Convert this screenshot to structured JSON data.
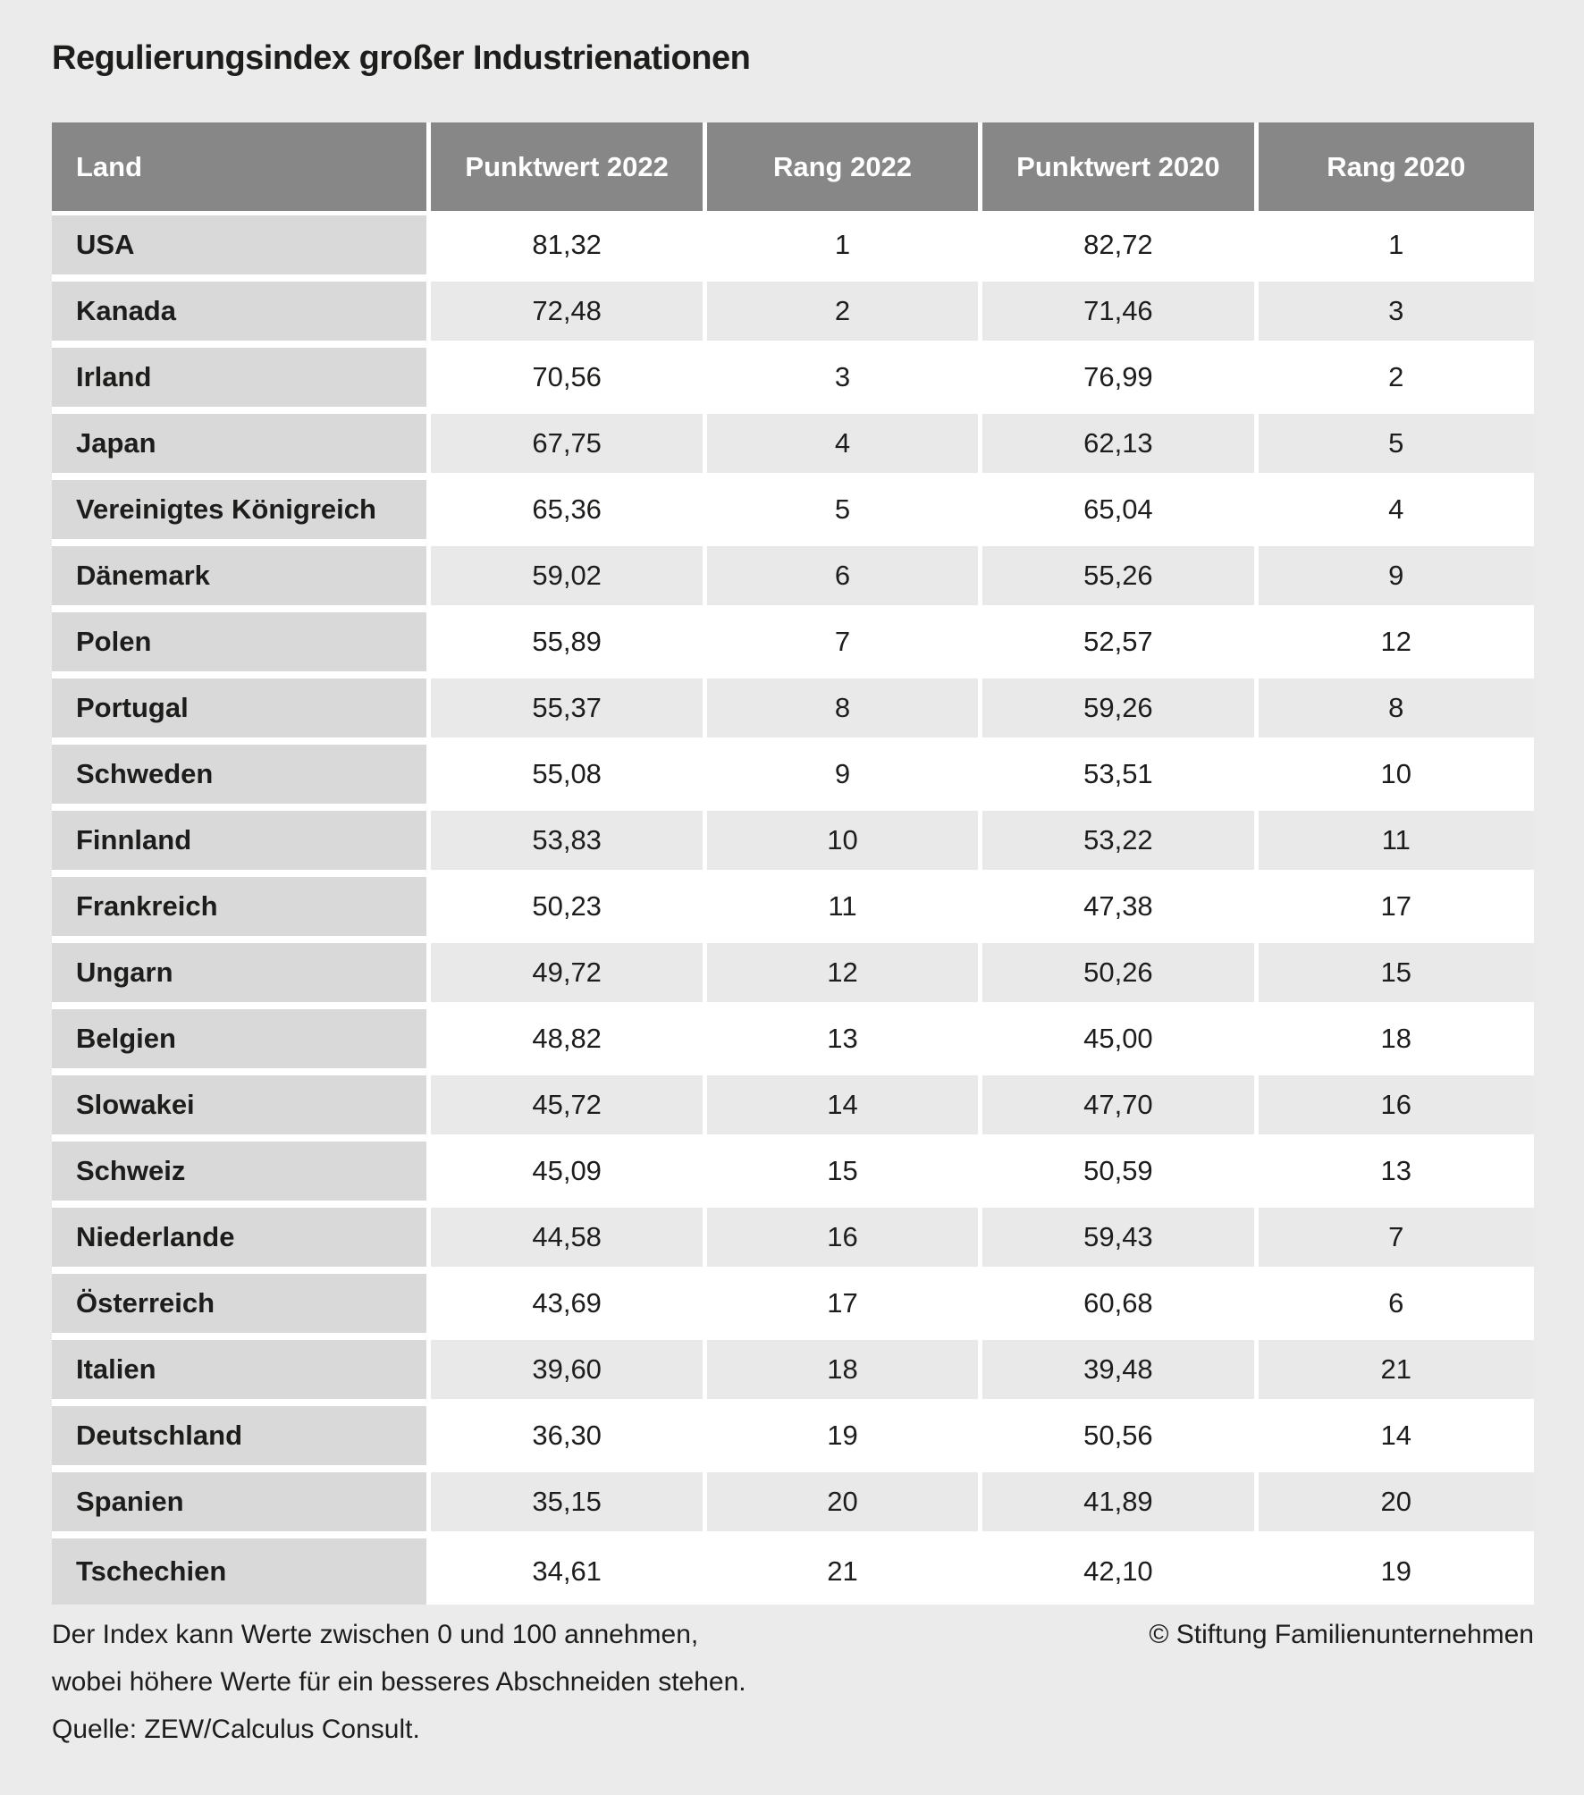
{
  "title": "Regulierungsindex großer Industrienationen",
  "chart_data": {
    "type": "table",
    "title": "Regulierungsindex großer Industrienationen",
    "columns": [
      "Land",
      "Punktwert 2022",
      "Rang 2022",
      "Punktwert 2020",
      "Rang 2020"
    ],
    "rows": [
      {
        "land": "USA",
        "punktwert_2022": "81,32",
        "rang_2022": "1",
        "punktwert_2020": "82,72",
        "rang_2020": "1"
      },
      {
        "land": "Kanada",
        "punktwert_2022": "72,48",
        "rang_2022": "2",
        "punktwert_2020": "71,46",
        "rang_2020": "3"
      },
      {
        "land": "Irland",
        "punktwert_2022": "70,56",
        "rang_2022": "3",
        "punktwert_2020": "76,99",
        "rang_2020": "2"
      },
      {
        "land": "Japan",
        "punktwert_2022": "67,75",
        "rang_2022": "4",
        "punktwert_2020": "62,13",
        "rang_2020": "5"
      },
      {
        "land": "Vereinigtes Königreich",
        "punktwert_2022": "65,36",
        "rang_2022": "5",
        "punktwert_2020": "65,04",
        "rang_2020": "4"
      },
      {
        "land": "Dänemark",
        "punktwert_2022": "59,02",
        "rang_2022": "6",
        "punktwert_2020": "55,26",
        "rang_2020": "9"
      },
      {
        "land": "Polen",
        "punktwert_2022": "55,89",
        "rang_2022": "7",
        "punktwert_2020": "52,57",
        "rang_2020": "12"
      },
      {
        "land": "Portugal",
        "punktwert_2022": "55,37",
        "rang_2022": "8",
        "punktwert_2020": "59,26",
        "rang_2020": "8"
      },
      {
        "land": "Schweden",
        "punktwert_2022": "55,08",
        "rang_2022": "9",
        "punktwert_2020": "53,51",
        "rang_2020": "10"
      },
      {
        "land": "Finnland",
        "punktwert_2022": "53,83",
        "rang_2022": "10",
        "punktwert_2020": "53,22",
        "rang_2020": "11"
      },
      {
        "land": "Frankreich",
        "punktwert_2022": "50,23",
        "rang_2022": "11",
        "punktwert_2020": "47,38",
        "rang_2020": "17"
      },
      {
        "land": "Ungarn",
        "punktwert_2022": "49,72",
        "rang_2022": "12",
        "punktwert_2020": "50,26",
        "rang_2020": "15"
      },
      {
        "land": "Belgien",
        "punktwert_2022": "48,82",
        "rang_2022": "13",
        "punktwert_2020": "45,00",
        "rang_2020": "18"
      },
      {
        "land": "Slowakei",
        "punktwert_2022": "45,72",
        "rang_2022": "14",
        "punktwert_2020": "47,70",
        "rang_2020": "16"
      },
      {
        "land": "Schweiz",
        "punktwert_2022": "45,09",
        "rang_2022": "15",
        "punktwert_2020": "50,59",
        "rang_2020": "13"
      },
      {
        "land": "Niederlande",
        "punktwert_2022": "44,58",
        "rang_2022": "16",
        "punktwert_2020": "59,43",
        "rang_2020": "7"
      },
      {
        "land": "Österreich",
        "punktwert_2022": "43,69",
        "rang_2022": "17",
        "punktwert_2020": "60,68",
        "rang_2020": "6"
      },
      {
        "land": "Italien",
        "punktwert_2022": "39,60",
        "rang_2022": "18",
        "punktwert_2020": "39,48",
        "rang_2020": "21"
      },
      {
        "land": "Deutschland",
        "punktwert_2022": "36,30",
        "rang_2022": "19",
        "punktwert_2020": "50,56",
        "rang_2020": "14"
      },
      {
        "land": "Spanien",
        "punktwert_2022": "35,15",
        "rang_2022": "20",
        "punktwert_2020": "41,89",
        "rang_2020": "20"
      },
      {
        "land": "Tschechien",
        "punktwert_2022": "34,61",
        "rang_2022": "21",
        "punktwert_2020": "42,10",
        "rang_2020": "19"
      }
    ],
    "layout_hints": {
      "grid": "white gaps between cells",
      "alternating_rows": true
    }
  },
  "footer": {
    "note_line1": "Der Index kann Werte zwischen 0 und 100 annehmen,",
    "note_line2": "wobei höhere Werte für ein besseres Abschneiden stehen.",
    "source": "Quelle: ZEW/Calculus Consult.",
    "copyright": "© Stiftung Familienunternehmen"
  },
  "colors": {
    "page_bg": "#ebebeb",
    "header_bg": "#878787",
    "header_text": "#ffffff",
    "land_cell_bg": "#d9d9d9",
    "row_white_bg": "#ffffff",
    "row_alt_bg": "#e9e9e9",
    "cell_gap": "#ffffff",
    "text": "#1d1d1b"
  }
}
